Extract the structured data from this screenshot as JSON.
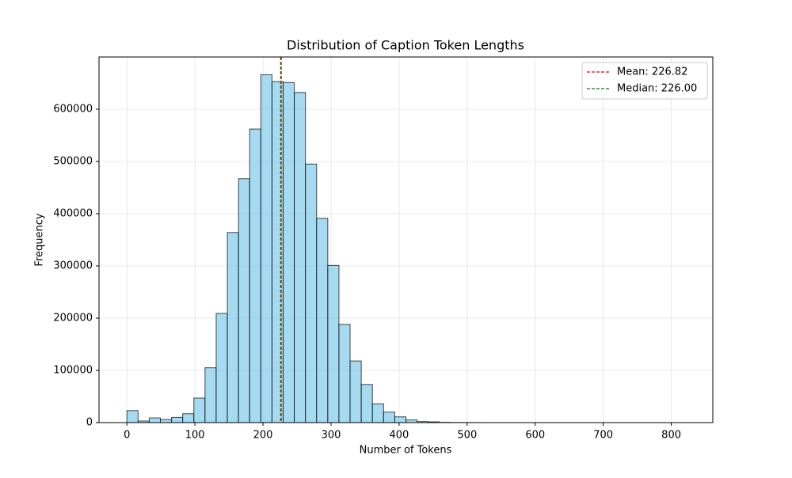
{
  "chart_data": {
    "type": "histogram",
    "title": "Distribution of Caption Token Lengths",
    "xlabel": "Number of Tokens",
    "ylabel": "Frequency",
    "bins": [
      0,
      16.4,
      32.8,
      49.2,
      65.6,
      82,
      98.4,
      114.8,
      131.2,
      147.6,
      164,
      180.4,
      196.8,
      213.2,
      229.6,
      246,
      262.4,
      278.8,
      295.2,
      311.6,
      328,
      344.4,
      360.8,
      377.2,
      393.6,
      410,
      426.4,
      442.8,
      459.2,
      475.6,
      492,
      508.4,
      524.8,
      541.2,
      557.6,
      574,
      590.4,
      606.8,
      623.2,
      639.6,
      656,
      672.4,
      688.8,
      705.2,
      721.6,
      738,
      754.4,
      770.8,
      787.2,
      803.6,
      820
    ],
    "values": [
      23000,
      3000,
      9000,
      6000,
      10000,
      17000,
      47000,
      105000,
      209000,
      364000,
      467000,
      562000,
      666000,
      653000,
      651000,
      632000,
      495000,
      391000,
      301000,
      188000,
      118000,
      73000,
      36000,
      20000,
      11000,
      5000,
      2000,
      1500,
      500,
      200,
      100,
      50,
      20,
      10,
      5,
      0,
      0,
      0,
      0,
      0,
      0,
      0,
      0,
      0,
      0,
      0,
      0,
      0,
      0,
      0
    ],
    "color": "#87ceeb",
    "edgecolor": "#000000",
    "xlim": [
      -41,
      861
    ],
    "xticks": [
      0,
      100,
      200,
      300,
      400,
      500,
      600,
      700,
      800
    ],
    "ylim": [
      0,
      700000
    ],
    "yticks": [
      0,
      100000,
      200000,
      300000,
      400000,
      500000,
      600000
    ],
    "grid": true,
    "legend": "upper right",
    "lines": [
      {
        "name": "Mean: 226.82",
        "value": 226.82,
        "color": "#ff0000"
      },
      {
        "name": "Median: 226.00",
        "value": 226.0,
        "color": "#008000"
      }
    ]
  }
}
